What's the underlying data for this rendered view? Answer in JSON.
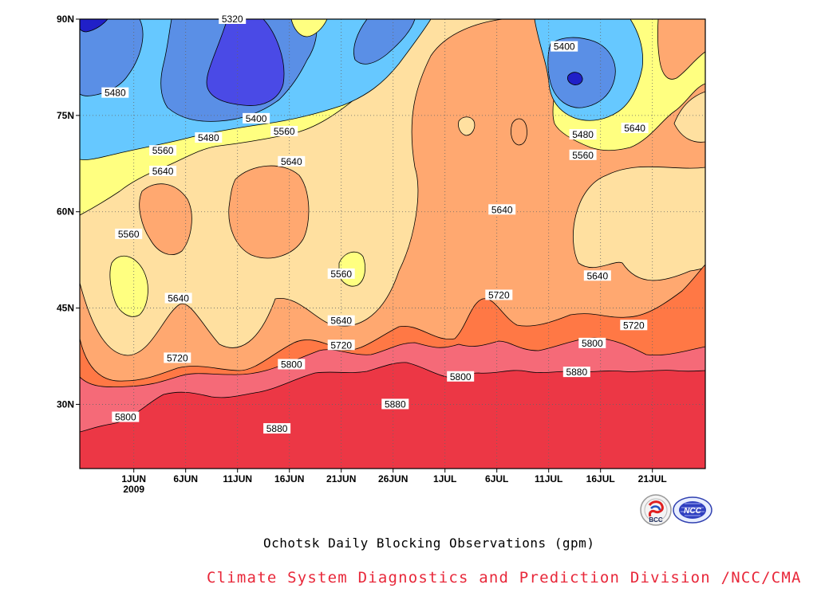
{
  "chart_data": {
    "type": "contour",
    "title": "Ochotsk Daily Blocking Observations (gpm)",
    "credit": "Climate System Diagnostics and Prediction Division /NCC/CMA",
    "x_tick_labels": [
      "1JUN",
      "6JUN",
      "11JUN",
      "16JUN",
      "21JUN",
      "26JUN",
      "1JUL",
      "6JUL",
      "11JUL",
      "16JUL",
      "21JUL"
    ],
    "x_year_label": "2009",
    "y_tick_labels": [
      "30N",
      "45N",
      "60N",
      "75N",
      "90N"
    ],
    "y_values": [
      30,
      45,
      60,
      75,
      90
    ],
    "ylim": [
      20,
      90
    ],
    "contour_levels": [
      5320,
      5400,
      5480,
      5560,
      5640,
      5720,
      5800,
      5880
    ],
    "level_colors": {
      "below_5320": "#2020c8",
      "5320_5400": "#4a4ae6",
      "5400_5480": "#5a8fe6",
      "5480_5560": "#66c8ff",
      "5560_5640": "#ffff80",
      "5640_5720": "#ffe0a0",
      "5720_5800": "#ffa870",
      "5800_5880": "#ff7845",
      "5880_5960": "#f56a78",
      "above_5960": "#ec3745"
    },
    "grid": "dotted",
    "logos": [
      "BCC",
      "NCC"
    ],
    "contour_labels": [
      {
        "text": "5320",
        "day": 9.5,
        "lat": 90
      },
      {
        "text": "5480",
        "day": -1.8,
        "lat": 78.5
      },
      {
        "text": "5400",
        "day": 11.8,
        "lat": 74.5
      },
      {
        "text": "5480",
        "day": 7.2,
        "lat": 71.5
      },
      {
        "text": "5560",
        "day": 14.5,
        "lat": 72.5
      },
      {
        "text": "5560",
        "day": 2.8,
        "lat": 69.5
      },
      {
        "text": "5640",
        "day": 2.8,
        "lat": 66.3
      },
      {
        "text": "5640",
        "day": 15.2,
        "lat": 67.8
      },
      {
        "text": "5560",
        "day": -0.5,
        "lat": 56.5
      },
      {
        "text": "5640",
        "day": 4.3,
        "lat": 46.5
      },
      {
        "text": "5560",
        "day": 20.0,
        "lat": 50.3
      },
      {
        "text": "5640",
        "day": 20.0,
        "lat": 43.0
      },
      {
        "text": "5720",
        "day": 20.0,
        "lat": 39.2
      },
      {
        "text": "5720",
        "day": 4.2,
        "lat": 37.2
      },
      {
        "text": "5800",
        "day": 15.2,
        "lat": 36.2
      },
      {
        "text": "5800",
        "day": 31.5,
        "lat": 34.3
      },
      {
        "text": "5880",
        "day": 25.2,
        "lat": 30.0
      },
      {
        "text": "5800",
        "day": -0.8,
        "lat": 28.0
      },
      {
        "text": "5880",
        "day": 13.8,
        "lat": 26.2
      },
      {
        "text": "5720",
        "day": 35.2,
        "lat": 47.0
      },
      {
        "text": "5640",
        "day": 35.5,
        "lat": 60.3
      },
      {
        "text": "5400",
        "day": 41.5,
        "lat": 85.7
      },
      {
        "text": "5480",
        "day": 43.3,
        "lat": 72.0
      },
      {
        "text": "5560",
        "day": 43.3,
        "lat": 68.8
      },
      {
        "text": "5640",
        "day": 48.3,
        "lat": 73.0
      },
      {
        "text": "5640",
        "day": 44.7,
        "lat": 50.0
      },
      {
        "text": "5720",
        "day": 48.2,
        "lat": 42.3
      },
      {
        "text": "5800",
        "day": 44.2,
        "lat": 39.5
      },
      {
        "text": "5880",
        "day": 42.7,
        "lat": 35.0
      }
    ]
  }
}
